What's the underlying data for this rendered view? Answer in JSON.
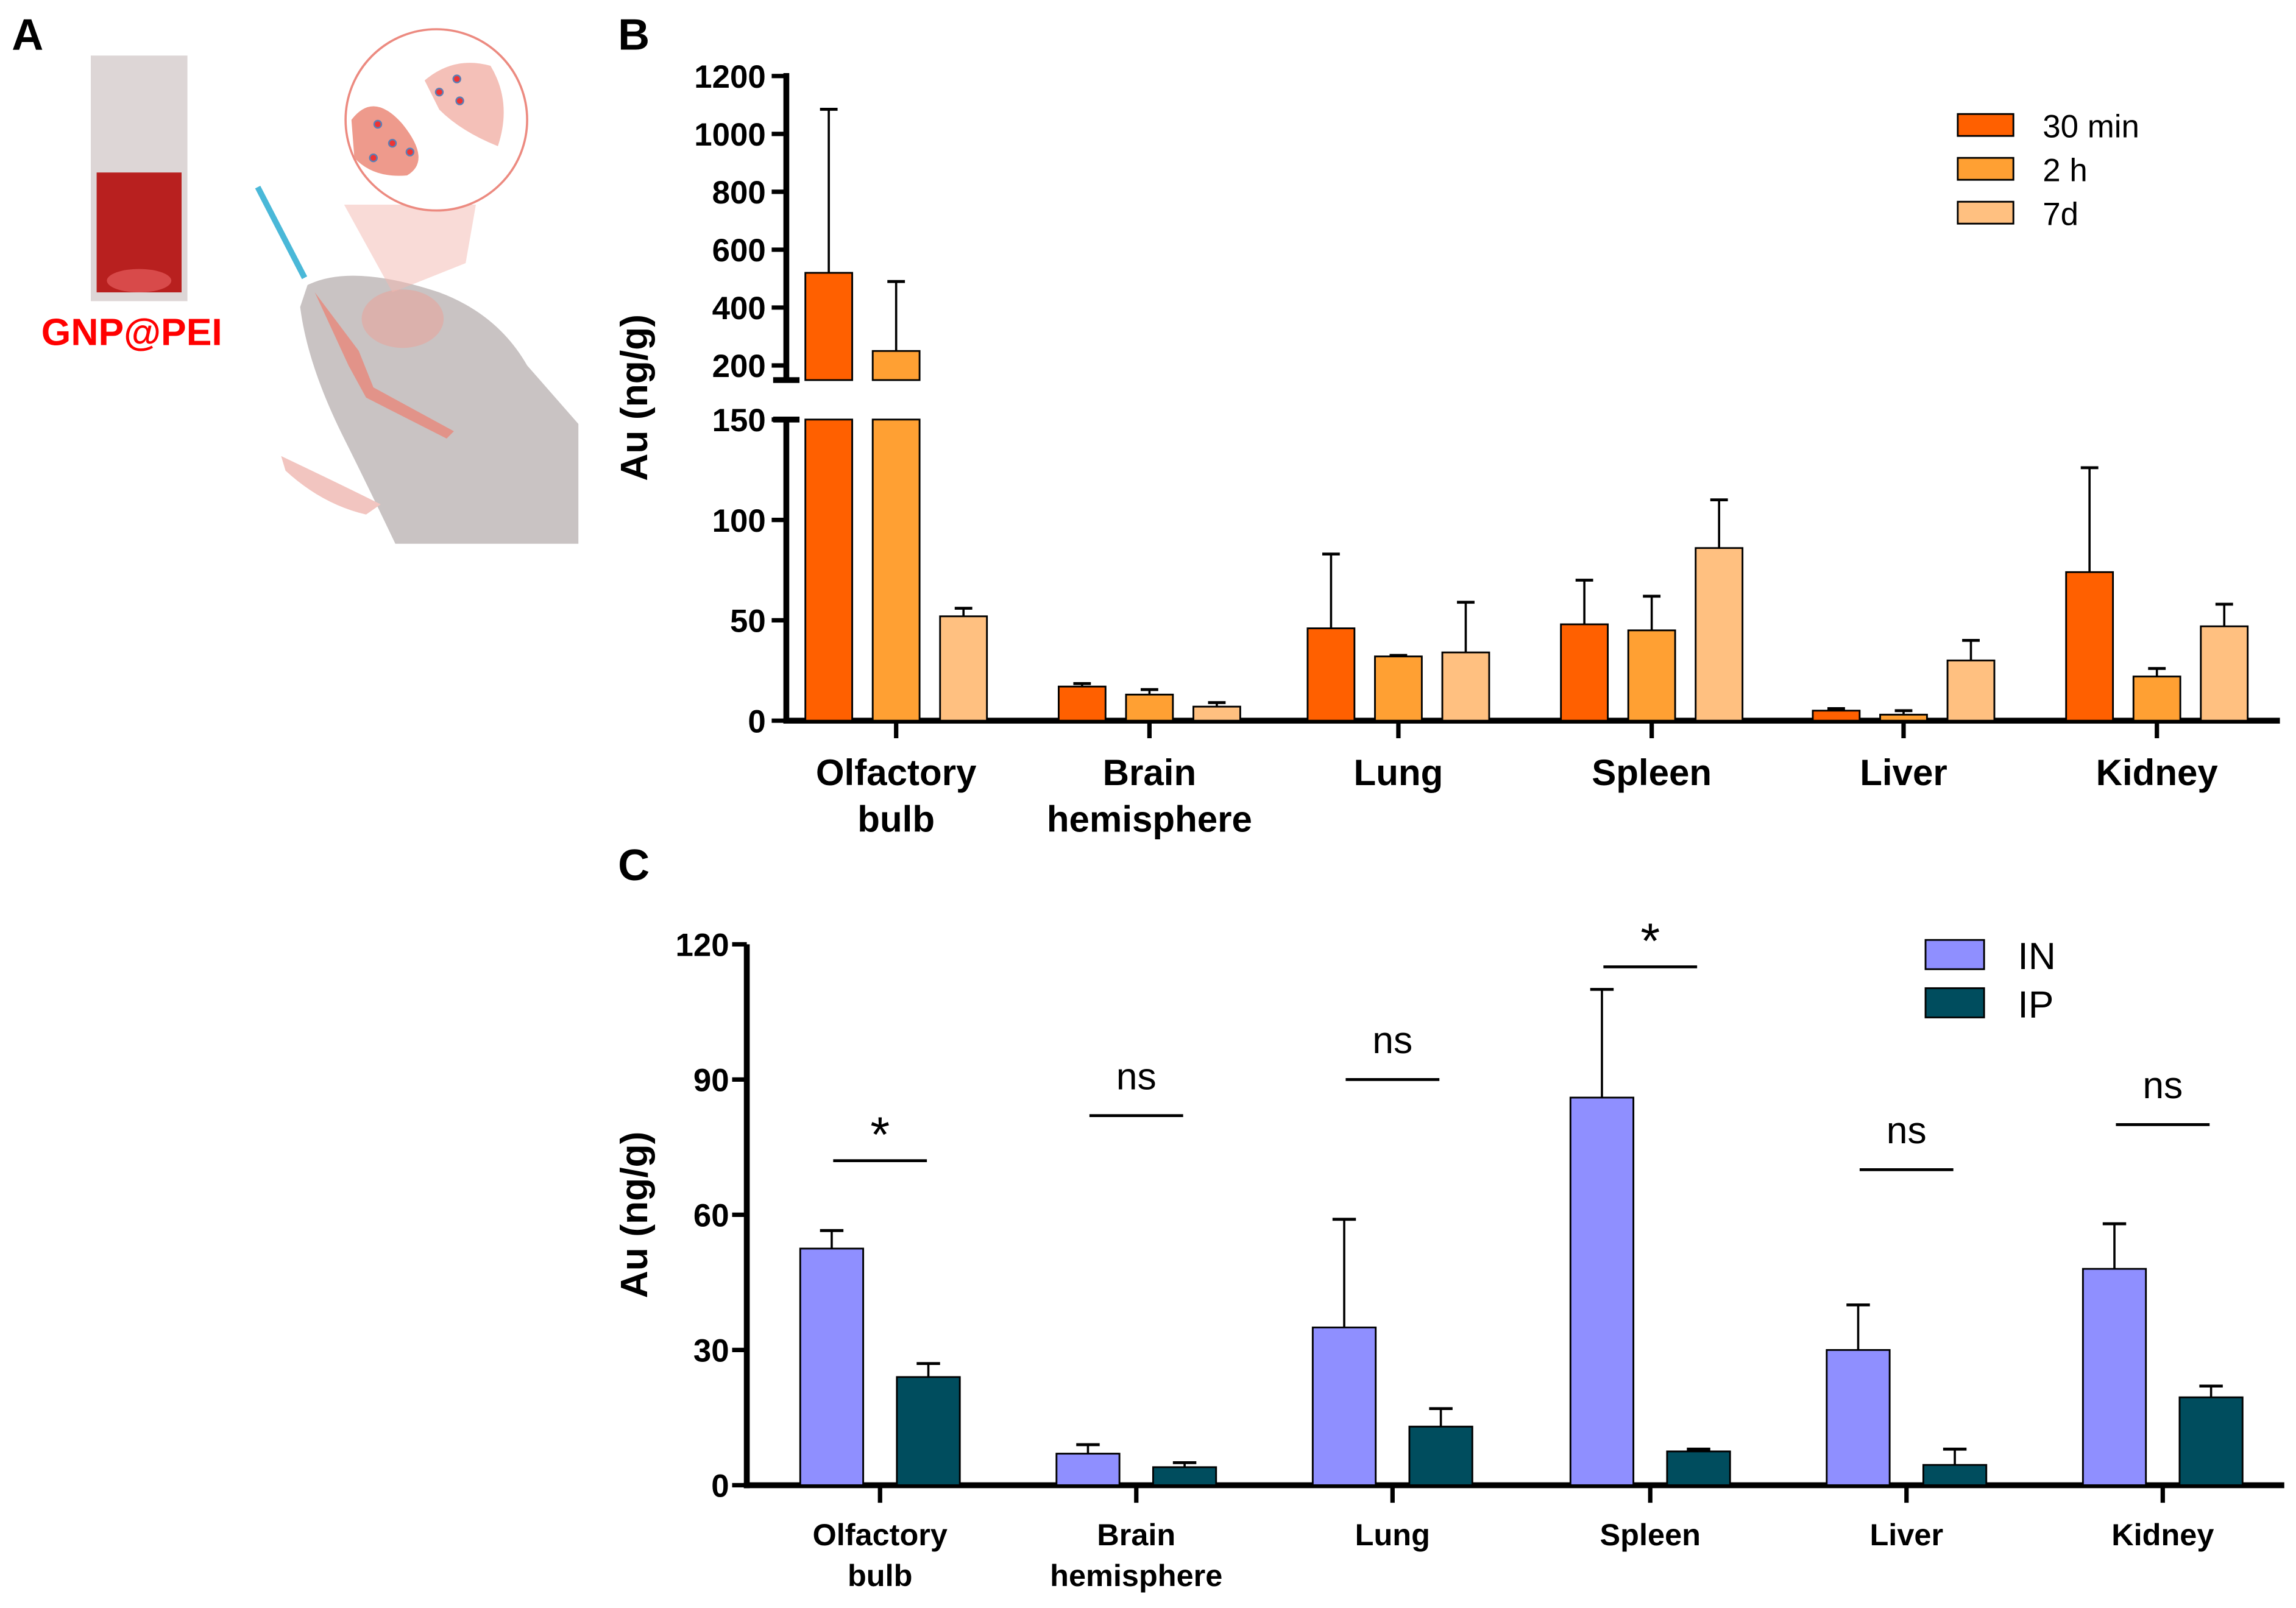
{
  "panelA": {
    "letter": "A",
    "label": "GNP@PEI",
    "label_color": "#FF0000"
  },
  "chart_data": [
    {
      "panel": "B",
      "type": "bar",
      "title": "",
      "ylabel": "Au (ng/g)",
      "xlabel": "",
      "ylim": [
        0,
        1200
      ],
      "y_axis_break": [
        150,
        200
      ],
      "yticks_lower": [
        0,
        50,
        100,
        150
      ],
      "yticks_upper": [
        200,
        400,
        600,
        800,
        1000,
        1200
      ],
      "categories": [
        "Olfactory bulb",
        "Brain hemisphere",
        "Lung",
        "Spleen",
        "Liver",
        "Kidney"
      ],
      "category_lines": [
        [
          "Olfactory",
          "bulb"
        ],
        [
          "Brain",
          "hemisphere"
        ],
        [
          "Lung"
        ],
        [
          "Spleen"
        ],
        [
          "Liver"
        ],
        [
          "Kidney"
        ]
      ],
      "legend_position": "top-right",
      "series": [
        {
          "name": "30 min",
          "color": "#FF6000",
          "values": [
            520,
            17,
            46,
            48,
            5,
            74
          ],
          "error_top": [
            1085,
            18.5,
            83,
            70,
            6,
            126
          ]
        },
        {
          "name": "2 h",
          "color": "#FFA033",
          "values": [
            250,
            13,
            32,
            45,
            3,
            22
          ],
          "error_top": [
            490,
            15.5,
            32.5,
            62,
            5,
            26
          ]
        },
        {
          "name": "7d",
          "color": "#FFC080",
          "values": [
            52,
            7,
            34,
            86,
            30,
            47
          ],
          "error_top": [
            56,
            9,
            59,
            110,
            40,
            58
          ]
        }
      ]
    },
    {
      "panel": "C",
      "type": "bar",
      "title": "",
      "ylabel": "Au (ng/g)",
      "xlabel": "",
      "ylim": [
        0,
        120
      ],
      "yticks": [
        0,
        30,
        60,
        90,
        120
      ],
      "categories": [
        "Olfactory bulb",
        "Brain hemisphere",
        "Lung",
        "Spleen",
        "Liver",
        "Kidney"
      ],
      "category_lines": [
        [
          "Olfactory",
          "bulb"
        ],
        [
          "Brain",
          "hemisphere"
        ],
        [
          "Lung"
        ],
        [
          "Spleen"
        ],
        [
          "Liver"
        ],
        [
          "Kidney"
        ]
      ],
      "legend_position": "top-right",
      "series": [
        {
          "name": "IN",
          "color": "#8F8FFF",
          "values": [
            52.5,
            7,
            35,
            86,
            30,
            48
          ],
          "error_top": [
            56.5,
            9,
            59,
            110,
            40,
            58
          ]
        },
        {
          "name": "IP",
          "color": "#004D5E",
          "values": [
            24,
            4,
            13,
            7.5,
            4.5,
            19.5
          ],
          "error_top": [
            27,
            5,
            17,
            8,
            8,
            22
          ]
        }
      ],
      "significance": [
        "*",
        "ns",
        "ns",
        "*",
        "ns",
        "ns"
      ],
      "significance_level": [
        72,
        82,
        90,
        115,
        70,
        80
      ]
    }
  ]
}
